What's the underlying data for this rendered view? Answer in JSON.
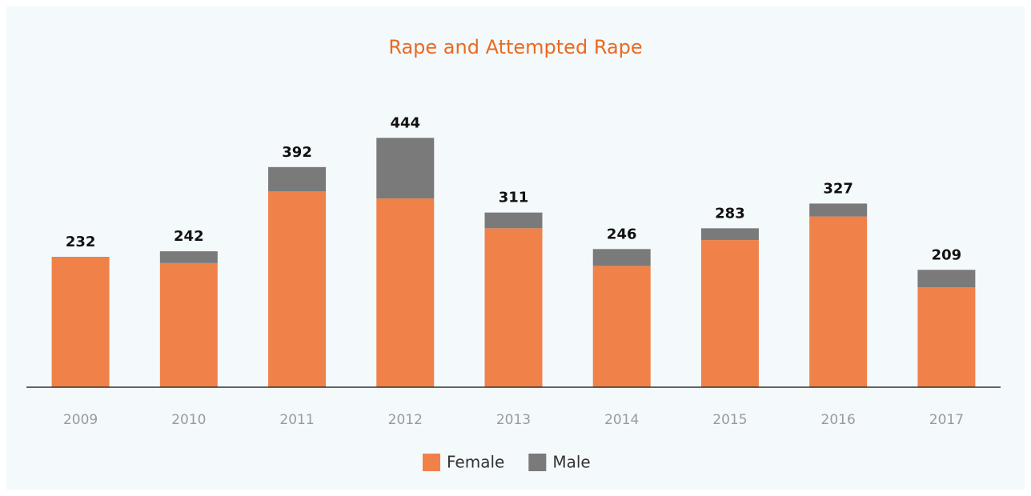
{
  "chart_data": {
    "type": "stacked_bar",
    "title": "Rape and Attempted Rape",
    "categories": [
      "2009",
      "2010",
      "2011",
      "2012",
      "2013",
      "2014",
      "2015",
      "2016",
      "2017"
    ],
    "series": [
      {
        "name": "Female",
        "color": "#f08148",
        "values": [
          231,
          221,
          349,
          336,
          283,
          216,
          262,
          304,
          178
        ]
      },
      {
        "name": "Male",
        "color": "#7a7a7a",
        "values": [
          1,
          21,
          43,
          108,
          28,
          30,
          21,
          23,
          31
        ]
      }
    ],
    "totals": [
      232,
      242,
      392,
      444,
      311,
      246,
      283,
      327,
      209
    ],
    "ylim": [
      0,
      500
    ],
    "legend": "bottom"
  }
}
